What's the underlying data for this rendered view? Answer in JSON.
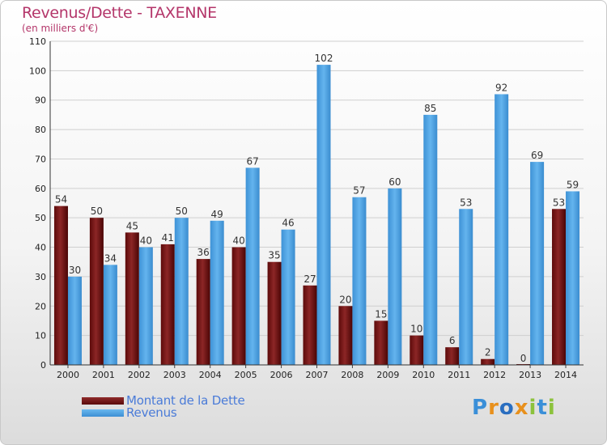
{
  "header": {
    "title": "Revenus/Dette - TAXENNE",
    "subtitle": "(en milliers d'€)"
  },
  "legend": {
    "dette_label": "Montant de la Dette",
    "revenus_label": "Revenus"
  },
  "logo": {
    "text": "Proxiti"
  },
  "colors": {
    "title": "#b4366a",
    "dette": "#7a1414",
    "revenus": "#4fa3e4",
    "legend_text": "#4a7bd8"
  },
  "chart_data": {
    "type": "bar",
    "title": "Revenus/Dette - TAXENNE",
    "subtitle": "(en milliers d'€)",
    "xlabel": "",
    "ylabel": "",
    "ylim": [
      0,
      110
    ],
    "yticks": [
      0,
      10,
      20,
      30,
      40,
      50,
      60,
      70,
      80,
      90,
      100,
      110
    ],
    "grid": true,
    "legend_position": "bottom-left",
    "categories": [
      "2000",
      "2001",
      "2002",
      "2003",
      "2004",
      "2005",
      "2006",
      "2007",
      "2008",
      "2009",
      "2010",
      "2011",
      "2012",
      "2013",
      "2014"
    ],
    "series": [
      {
        "name": "Montant de la Dette",
        "values": [
          54,
          50,
          45,
          41,
          36,
          40,
          35,
          27,
          20,
          15,
          10,
          6,
          2,
          0,
          53
        ]
      },
      {
        "name": "Revenus",
        "values": [
          30,
          34,
          40,
          50,
          49,
          67,
          46,
          102,
          57,
          60,
          85,
          53,
          92,
          69,
          59
        ]
      }
    ]
  }
}
